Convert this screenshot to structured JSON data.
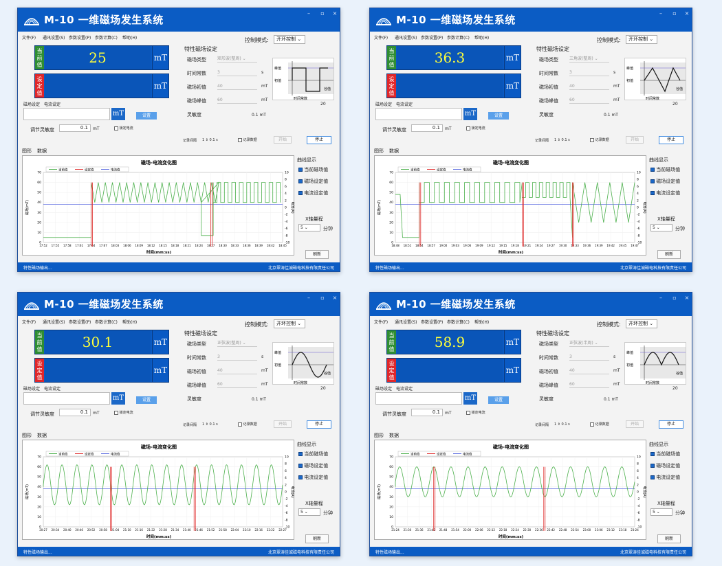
{
  "app": {
    "title": "M-10 一维磁场发生系统",
    "menu": [
      "文件(F)",
      "通讯设置(S)",
      "参数设置(P)",
      "参数计算(C)",
      "帮助(H)"
    ],
    "control_mode_label": "控制模式:",
    "control_mode_value": "开环控制",
    "current_tag": "当前值",
    "set_tag": "设定值",
    "unit": "mT",
    "sub_tabs": [
      "磁场设定",
      "电流设定"
    ],
    "set_button": "设置",
    "sensitivity_label": "调节灵敏度",
    "sensitivity_value": "0.1",
    "sensitivity_unit": "mT",
    "lock_current": "锁定电流",
    "char_group_title": "特性磁场设定",
    "type_label": "磁场类型",
    "time_label": "时间常数",
    "time_value": "3",
    "time_unit": "s",
    "init_label": "磁场初值",
    "init_value": "40",
    "peak_label": "磁场峰值",
    "peak_value": "60",
    "sens2_label": "灵敏度",
    "sens2_value": "0.1",
    "wave_peak": "峰值",
    "wave_init": "初值",
    "wave_time": "时间常数",
    "wave_cycle": "谷值",
    "wave_num": "20",
    "record_interval_label": "记录间隔",
    "record_interval_value": "1",
    "record_interval_unit": "0.1 s",
    "record_data": "记录数据",
    "start": "开始",
    "stop": "停止",
    "main_tabs": [
      "图形",
      "数据"
    ],
    "chart_title": "磁场-电流变化图",
    "legend": [
      "当前值",
      "设定值",
      "电流值"
    ],
    "y_label": "磁场(mT)",
    "y2_label": "电流(A)",
    "x_label": "时间(mm:ss)",
    "curve_group": "曲线显示",
    "curve_items": [
      "当前磁场值",
      "磁场设定值",
      "电流设定值"
    ],
    "x_range_label": "X轴量程",
    "x_range_value": "5",
    "x_range_unit": "分钟",
    "refresh": "刷新",
    "status_left": "特性磁场输出...",
    "status_right": "北京翠涛佳诚磁电科技有限责任公司"
  },
  "windows": [
    {
      "current_value": "25",
      "field_type": "矩形波(整周)",
      "wave": "square",
      "y_ticks": [
        "70",
        "60",
        "50",
        "40",
        "30",
        "20",
        "10",
        "0"
      ],
      "y2_ticks": [
        "10",
        "8",
        "6",
        "4",
        "2",
        "0",
        "-2",
        "-4",
        "-6",
        "-8",
        "-10"
      ],
      "x_ticks": [
        "17:52",
        "17:55",
        "17:58",
        "17:61",
        "17:64",
        "17:67",
        "18:03",
        "18:06",
        "18:09",
        "18:12",
        "18:15",
        "18:18",
        "18:21",
        "18:24",
        "18:27",
        "18:30",
        "18:33",
        "18:36",
        "18:39",
        "18:42",
        "18:45"
      ],
      "chart_data": {
        "type": "line",
        "segments": [
          "flat-low",
          "triangle",
          "flat-low",
          "square"
        ]
      }
    },
    {
      "current_value": "36.3",
      "field_type": "三角波(整周)",
      "wave": "triangle",
      "y_ticks": [
        "70",
        "60",
        "50",
        "40",
        "30",
        "20",
        "10",
        "0"
      ],
      "y2_ticks": [
        "10",
        "8",
        "6",
        "4",
        "2",
        "0",
        "-2",
        "-4",
        "-6",
        "-8",
        "-10"
      ],
      "x_ticks": [
        "18:48",
        "18:51",
        "18:54",
        "18:57",
        "19:00",
        "19:03",
        "19:06",
        "19:09",
        "19:12",
        "19:15",
        "19:18",
        "19:21",
        "19:24",
        "19:27",
        "19:30",
        "19:33",
        "19:36",
        "19:39",
        "19:42",
        "19:45",
        "19:47"
      ],
      "chart_data": {
        "type": "line",
        "segments": [
          "flat-low",
          "square",
          "square-high",
          "triangle"
        ]
      }
    },
    {
      "current_value": "30.1",
      "field_type": "正弦波(整周)",
      "wave": "sine",
      "y_ticks": [
        "70",
        "60",
        "50",
        "40",
        "30",
        "20",
        "10",
        "0"
      ],
      "y2_ticks": [
        "10",
        "8",
        "6",
        "4",
        "2",
        "0",
        "-2",
        "-4",
        "-6",
        "-8",
        "-10"
      ],
      "x_ticks": [
        "20:27",
        "20:34",
        "20:40",
        "20:46",
        "20:52",
        "20:58",
        "21:04",
        "21:10",
        "21:16",
        "21:22",
        "21:28",
        "21:34",
        "21:40",
        "21:46",
        "21:52",
        "21:58",
        "22:04",
        "22:10",
        "22:16",
        "22:22",
        "22:27"
      ],
      "chart_data": {
        "type": "line",
        "segments": [
          "sine"
        ]
      }
    },
    {
      "current_value": "58.9",
      "field_type": "正弦波(半周)",
      "wave": "halfsine",
      "y_ticks": [
        "70",
        "60",
        "50",
        "40",
        "30",
        "20",
        "10",
        "0"
      ],
      "y2_ticks": [
        "10",
        "8",
        "6",
        "4",
        "2",
        "0",
        "-2",
        "-4",
        "-6",
        "-8",
        "-10"
      ],
      "x_ticks": [
        "21:24",
        "21:30",
        "21:36",
        "21:42",
        "21:48",
        "21:54",
        "22:00",
        "22:06",
        "22:12",
        "22:18",
        "22:24",
        "22:30",
        "22:36",
        "22:42",
        "22:48",
        "22:54",
        "23:00",
        "23:06",
        "23:12",
        "23:18",
        "23:24"
      ],
      "chart_data": {
        "type": "line",
        "segments": [
          "sine-offset"
        ]
      }
    }
  ]
}
